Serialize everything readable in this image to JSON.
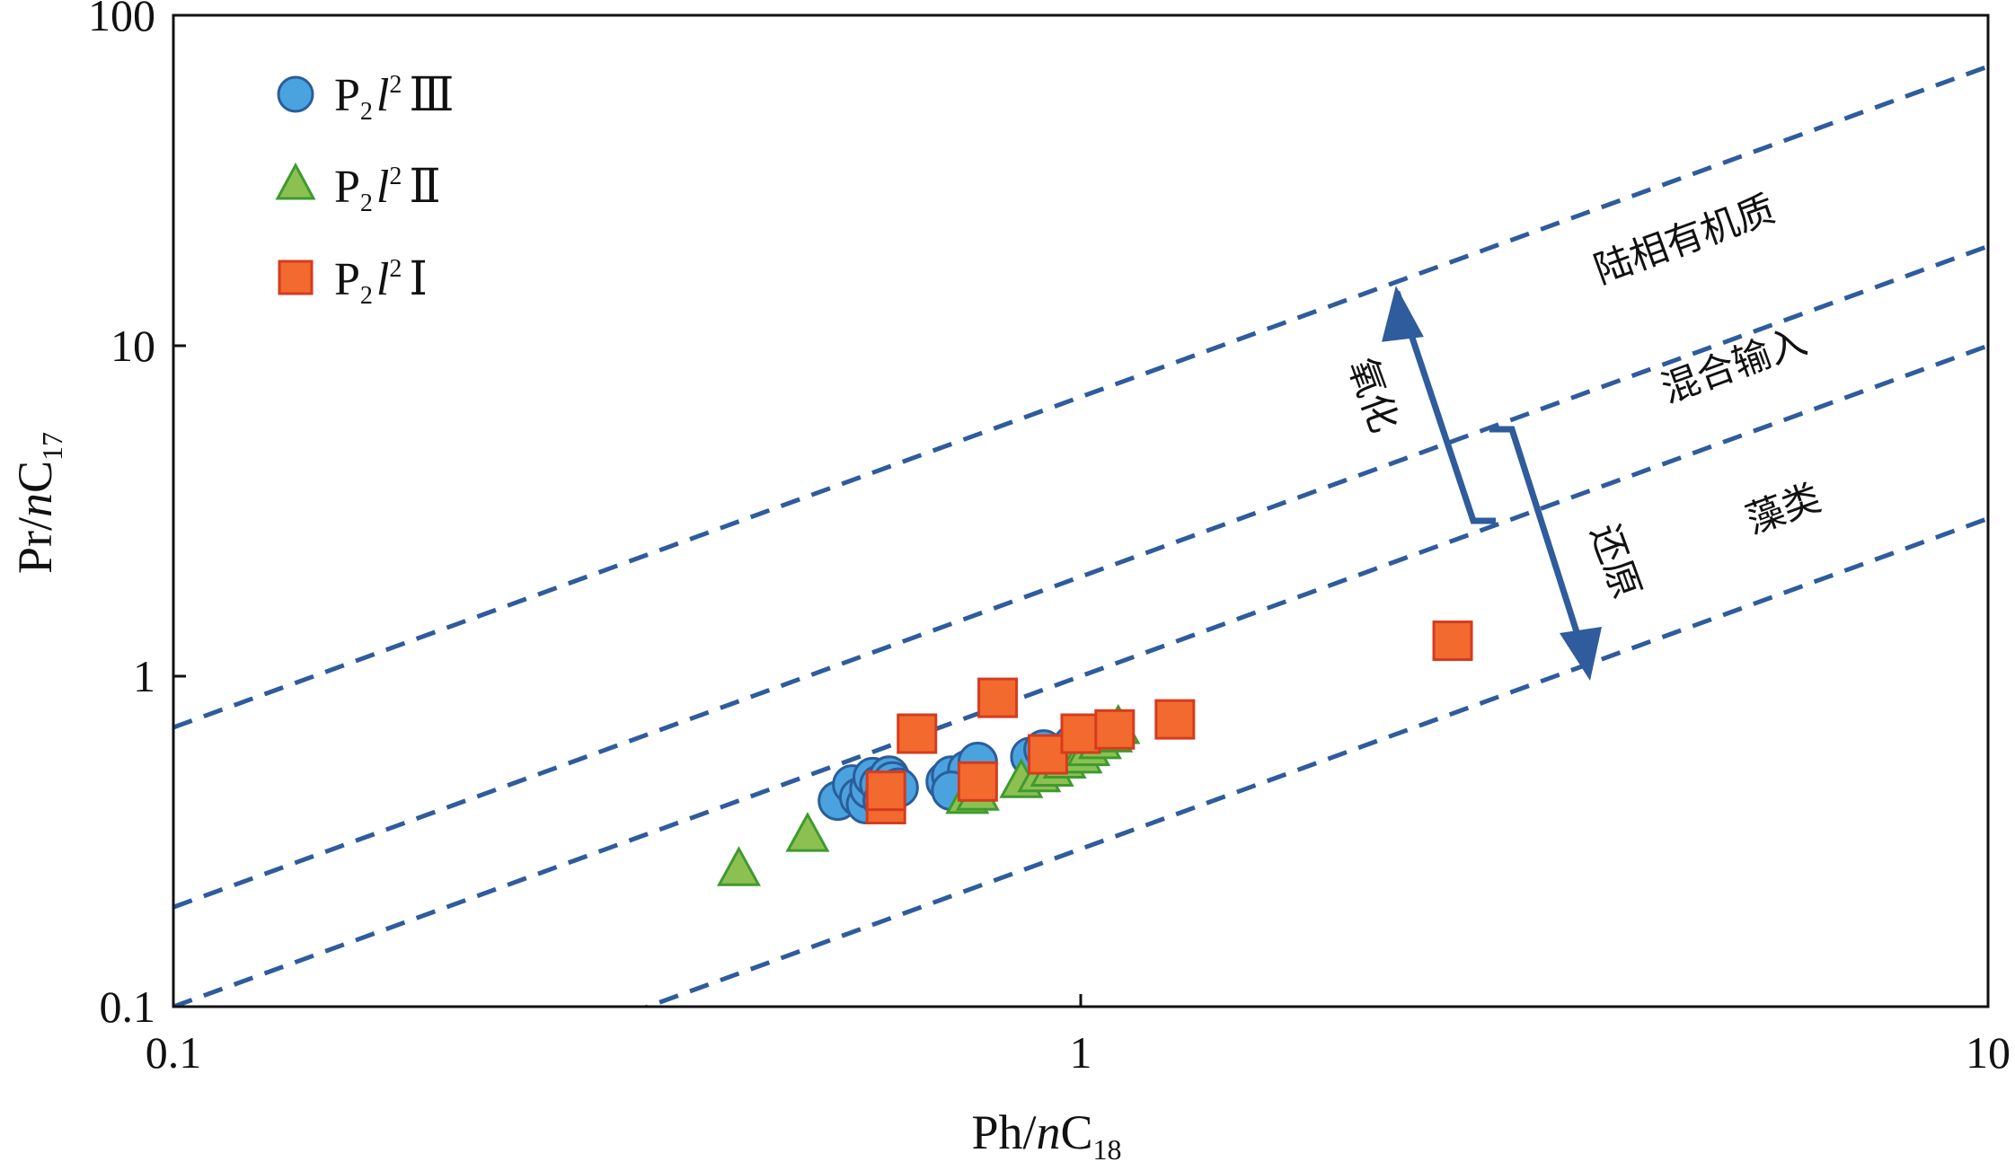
{
  "chart_data": {
    "type": "scatter",
    "xscale": "log",
    "yscale": "log",
    "xlim": [
      0.1,
      10
    ],
    "ylim": [
      0.1,
      100
    ],
    "x_ticks": [
      "0.1",
      "1",
      "10"
    ],
    "y_ticks": [
      "0.1",
      "1",
      "10",
      "100"
    ],
    "xlabel": {
      "main": "Ph/",
      "italic": "n",
      "rest": "C",
      "sub": "18"
    },
    "ylabel": {
      "main": "Pr/",
      "italic": "n",
      "rest": "C",
      "sub": "17"
    },
    "legend_position": "top-left",
    "series": [
      {
        "name": "P2l2 Ⅲ",
        "label": {
          "base": "P",
          "sub": "2",
          "italic": "l",
          "sup": "2",
          "roman": "Ⅲ"
        },
        "marker": "circle",
        "fill": "#4aa3df",
        "stroke": "#2b5d9b",
        "points": [
          [
            0.54,
            0.42
          ],
          [
            0.56,
            0.47
          ],
          [
            0.57,
            0.43
          ],
          [
            0.58,
            0.41
          ],
          [
            0.585,
            0.455
          ],
          [
            0.59,
            0.495
          ],
          [
            0.6,
            0.47
          ],
          [
            0.605,
            0.42
          ],
          [
            0.61,
            0.45
          ],
          [
            0.615,
            0.5
          ],
          [
            0.62,
            0.48
          ],
          [
            0.63,
            0.46
          ],
          [
            0.71,
            0.48
          ],
          [
            0.72,
            0.5
          ],
          [
            0.75,
            0.52
          ],
          [
            0.77,
            0.55
          ],
          [
            0.72,
            0.45
          ],
          [
            0.88,
            0.57
          ],
          [
            0.91,
            0.6
          ],
          [
            0.98,
            0.62
          ],
          [
            1.02,
            0.65
          ],
          [
            0.95,
            0.56
          ]
        ]
      },
      {
        "name": "P2l2 Ⅱ",
        "label": {
          "base": "P",
          "sub": "2",
          "italic": "l",
          "sup": "2",
          "roman": "Ⅱ"
        },
        "marker": "triangle",
        "fill": "#8cc152",
        "stroke": "#3f9a2f",
        "points": [
          [
            0.42,
            0.26
          ],
          [
            0.5,
            0.33
          ],
          [
            0.75,
            0.43
          ],
          [
            0.77,
            0.44
          ],
          [
            0.86,
            0.48
          ],
          [
            0.9,
            0.5
          ],
          [
            0.93,
            0.52
          ],
          [
            0.96,
            0.55
          ],
          [
            1.0,
            0.57
          ],
          [
            1.02,
            0.6
          ],
          [
            1.05,
            0.63
          ],
          [
            1.1,
            0.7
          ],
          [
            1.08,
            0.66
          ]
        ]
      },
      {
        "name": "P2l2 Ⅰ",
        "label": {
          "base": "P",
          "sub": "2",
          "italic": "l",
          "sup": "2",
          "roman": "Ⅰ"
        },
        "marker": "square",
        "fill": "#f26a2e",
        "stroke": "#d63b1f",
        "points": [
          [
            0.61,
            0.41
          ],
          [
            0.61,
            0.45
          ],
          [
            0.66,
            0.67
          ],
          [
            0.77,
            0.48
          ],
          [
            0.81,
            0.86
          ],
          [
            0.92,
            0.58
          ],
          [
            1.0,
            0.67
          ],
          [
            1.09,
            0.69
          ],
          [
            1.27,
            0.74
          ],
          [
            2.57,
            1.28
          ]
        ]
      }
    ],
    "reference_lines": [
      {
        "ratio": 7,
        "style": "dashed"
      },
      {
        "ratio": 2,
        "style": "dashed"
      },
      {
        "ratio": 1,
        "style": "dashed"
      },
      {
        "ratio": 0.3,
        "style": "dashed"
      }
    ],
    "line_color": "#2e5c9c",
    "annotations": {
      "terrestrial": "陆相有机质",
      "mixed": "混合输入",
      "algae": "藻类",
      "oxidation": "氧化",
      "reduction": "还原"
    }
  }
}
